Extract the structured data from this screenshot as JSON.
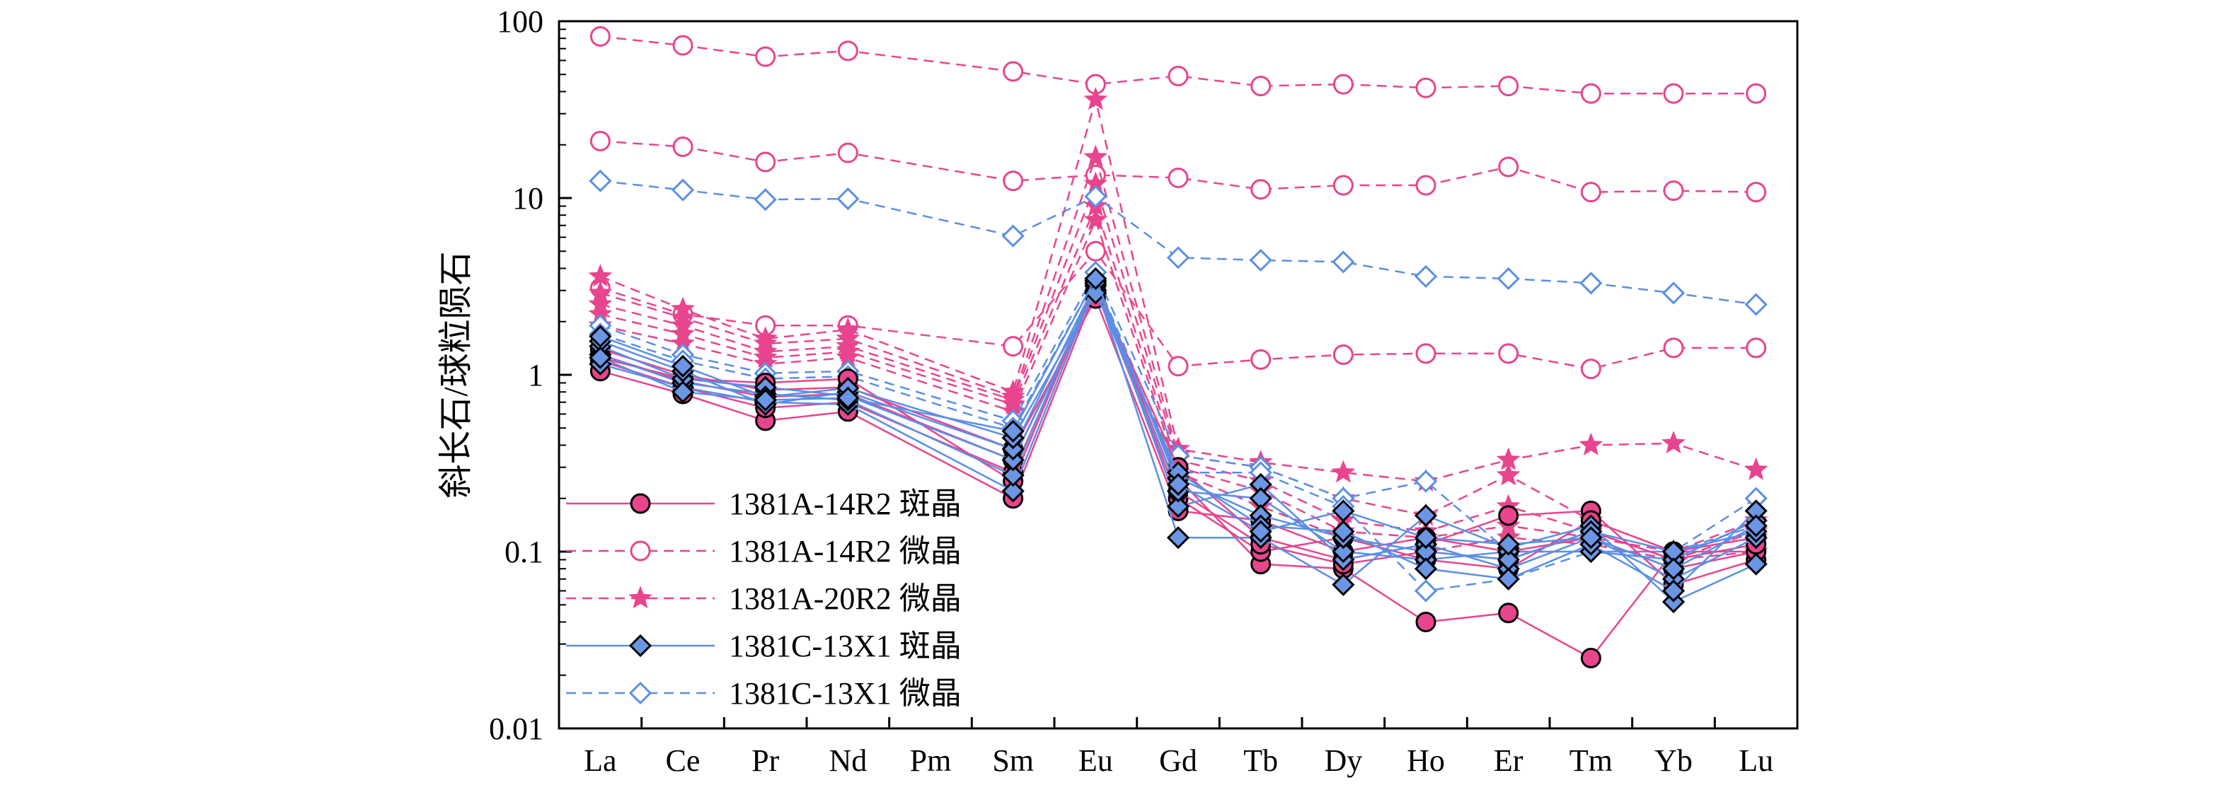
{
  "chart_data": {
    "type": "line",
    "title": "",
    "xlabel": "",
    "ylabel": "斜长石/球粒陨石",
    "yscale": "log",
    "ylim": [
      0.01,
      100
    ],
    "yticks": [
      0.01,
      0.1,
      1,
      10,
      100
    ],
    "ytick_labels": [
      "0.01",
      "0.1",
      "1",
      "10",
      "100"
    ],
    "categories": [
      "La",
      "Ce",
      "Pr",
      "Nd",
      "Pm",
      "Sm",
      "Eu",
      "Gd",
      "Tb",
      "Dy",
      "Ho",
      "Er",
      "Tm",
      "Yb",
      "Lu"
    ],
    "legend_position": "bottom-left",
    "legend": [
      {
        "label": "1381A-14R2 斑晶",
        "color": "#e8458e",
        "dashed": false,
        "marker": "circle",
        "filled": true,
        "fill": "#e8458e"
      },
      {
        "label": "1381A-14R2 微晶",
        "color": "#e8458e",
        "dashed": true,
        "marker": "circle",
        "filled": false,
        "fill": "#ffffff"
      },
      {
        "label": "1381A-20R2 微晶",
        "color": "#e8458e",
        "dashed": true,
        "marker": "star",
        "filled": true,
        "fill": "#e8458e"
      },
      {
        "label": "1381C-13X1 斑晶",
        "color": "#5b8fe6",
        "dashed": false,
        "marker": "diamond",
        "filled": true,
        "fill": "#6b96e6"
      },
      {
        "label": "1381C-13X1 微晶",
        "color": "#5b8fe6",
        "dashed": true,
        "marker": "diamond",
        "filled": false,
        "fill": "#ffffff"
      }
    ],
    "series": [
      {
        "group": 0,
        "values": [
          1.05,
          0.78,
          0.55,
          0.62,
          null,
          0.2,
          3.0,
          0.26,
          0.085,
          0.08,
          0.04,
          0.045,
          0.025,
          0.1,
          0.1
        ]
      },
      {
        "group": 0,
        "values": [
          1.2,
          0.85,
          0.65,
          0.7,
          null,
          0.28,
          3.2,
          0.3,
          0.12,
          0.09,
          0.11,
          0.16,
          0.17,
          0.065,
          0.09
        ]
      },
      {
        "group": 0,
        "values": [
          1.3,
          0.92,
          0.75,
          0.78,
          null,
          0.33,
          3.1,
          0.2,
          0.1,
          0.12,
          0.09,
          0.08,
          0.15,
          0.1,
          0.12
        ]
      },
      {
        "group": 0,
        "values": [
          1.4,
          1.0,
          0.82,
          0.85,
          null,
          0.38,
          2.7,
          0.17,
          0.15,
          0.1,
          0.12,
          0.1,
          0.12,
          0.08,
          0.1
        ]
      },
      {
        "group": 0,
        "values": [
          1.25,
          0.95,
          0.9,
          0.95,
          null,
          0.25,
          3.3,
          0.22,
          0.11,
          0.085,
          0.1,
          0.09,
          0.13,
          0.09,
          0.11
        ]
      },
      {
        "group": 1,
        "values": [
          82,
          73,
          63,
          68,
          null,
          52,
          44,
          49,
          43,
          44,
          42,
          43,
          39,
          39,
          39
        ]
      },
      {
        "group": 1,
        "values": [
          21,
          19.5,
          16,
          18,
          null,
          12.5,
          13.5,
          13,
          11.2,
          11.8,
          11.8,
          15,
          10.8,
          11,
          10.8
        ]
      },
      {
        "group": 1,
        "values": [
          3.1,
          2.2,
          1.9,
          1.9,
          null,
          1.45,
          5.0,
          1.12,
          1.22,
          1.3,
          1.32,
          1.32,
          1.08,
          1.42,
          1.42
        ]
      },
      {
        "group": 2,
        "values": [
          3.6,
          2.35,
          1.6,
          1.8,
          null,
          0.8,
          36,
          0.38,
          0.32,
          0.28,
          0.25,
          0.33,
          0.4,
          0.41,
          0.29
        ]
      },
      {
        "group": 2,
        "values": [
          2.9,
          2.1,
          1.5,
          1.6,
          null,
          0.75,
          17,
          0.35,
          0.3,
          0.2,
          0.16,
          0.27,
          0.15,
          0.1,
          0.15
        ]
      },
      {
        "group": 2,
        "values": [
          2.5,
          1.9,
          1.35,
          1.45,
          null,
          0.72,
          12,
          0.33,
          0.25,
          0.15,
          0.13,
          0.18,
          0.13,
          0.09,
          0.13
        ]
      },
      {
        "group": 2,
        "values": [
          2.2,
          1.7,
          1.25,
          1.35,
          null,
          0.68,
          9,
          0.3,
          0.22,
          0.13,
          0.12,
          0.14,
          0.12,
          0.1,
          0.12
        ]
      },
      {
        "group": 2,
        "values": [
          1.9,
          1.5,
          1.15,
          1.25,
          null,
          0.62,
          7.5,
          0.28,
          0.18,
          0.12,
          0.1,
          0.12,
          0.11,
          0.09,
          0.1
        ]
      },
      {
        "group": 3,
        "values": [
          1.15,
          0.85,
          0.7,
          0.68,
          null,
          0.22,
          3.2,
          0.12,
          0.12,
          0.065,
          0.16,
          0.105,
          0.14,
          0.052,
          0.085
        ]
      },
      {
        "group": 3,
        "values": [
          1.3,
          0.9,
          0.78,
          0.72,
          null,
          0.27,
          3.4,
          0.18,
          0.24,
          0.09,
          0.11,
          0.08,
          0.12,
          0.07,
          0.12
        ]
      },
      {
        "group": 3,
        "values": [
          1.45,
          0.95,
          0.85,
          0.76,
          null,
          0.33,
          3.0,
          0.22,
          0.2,
          0.1,
          0.09,
          0.1,
          0.1,
          0.09,
          0.15
        ]
      },
      {
        "group": 3,
        "values": [
          1.55,
          1.05,
          0.68,
          0.8,
          null,
          0.38,
          3.3,
          0.26,
          0.16,
          0.12,
          0.1,
          0.09,
          0.13,
          0.1,
          0.13
        ]
      },
      {
        "group": 3,
        "values": [
          1.65,
          1.12,
          0.75,
          0.84,
          null,
          0.44,
          2.9,
          0.28,
          0.14,
          0.13,
          0.08,
          0.07,
          0.11,
          0.06,
          0.17
        ]
      },
      {
        "group": 3,
        "values": [
          1.25,
          0.8,
          0.72,
          0.74,
          null,
          0.48,
          3.5,
          0.24,
          0.13,
          0.17,
          0.12,
          0.11,
          0.12,
          0.08,
          0.14
        ]
      },
      {
        "group": 4,
        "values": [
          12.5,
          11.1,
          9.8,
          9.9,
          null,
          6.1,
          10.2,
          4.6,
          4.45,
          4.35,
          3.6,
          3.5,
          3.3,
          2.9,
          2.5
        ]
      },
      {
        "group": 4,
        "values": [
          1.9,
          1.3,
          1.02,
          1.05,
          null,
          0.55,
          3.8,
          0.35,
          0.3,
          0.2,
          0.25,
          0.1,
          0.1,
          0.1,
          0.2
        ]
      },
      {
        "group": 4,
        "values": [
          1.7,
          1.2,
          0.95,
          0.98,
          null,
          0.5,
          3.5,
          0.28,
          0.28,
          0.18,
          0.06,
          0.07,
          0.1,
          0.1,
          0.14
        ]
      }
    ]
  }
}
